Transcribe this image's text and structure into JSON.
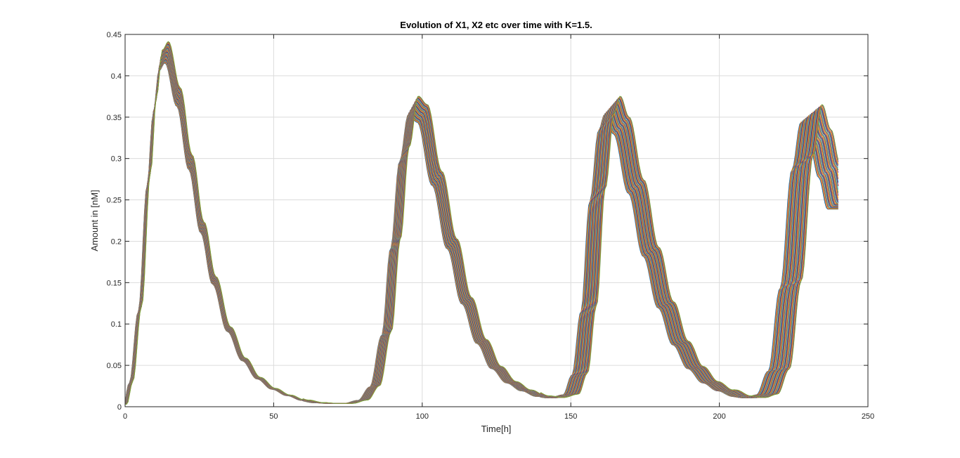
{
  "chart_data": {
    "type": "line",
    "title": "Evolution of X1, X2 etc over time with K=1.5.",
    "xlabel": "Time[h]",
    "ylabel": "Amount in [nM]",
    "xlim": [
      0,
      250
    ],
    "ylim": [
      0,
      0.45
    ],
    "xticks": [
      0,
      50,
      100,
      150,
      200,
      250
    ],
    "xtick_labels": [
      "0",
      "50",
      "100",
      "150",
      "200",
      "250"
    ],
    "yticks": [
      0,
      0.05,
      0.1,
      0.15,
      0.2,
      0.25,
      0.3,
      0.35,
      0.4,
      0.45
    ],
    "ytick_labels": [
      "0",
      "0.05",
      "0.1",
      "0.15",
      "0.2",
      "0.25",
      "0.3",
      "0.35",
      "0.4",
      "0.45"
    ],
    "grid": true,
    "legend": "none",
    "series_count": 40,
    "series_colors": [
      "#0072bd",
      "#d95319",
      "#edb120",
      "#7e2f8e",
      "#77ac30",
      "#4dbeee",
      "#a2142f"
    ],
    "reference_trajectory": {
      "x": [
        0,
        2,
        5,
        8,
        10,
        12,
        14,
        18,
        22,
        26,
        30,
        35,
        40,
        45,
        50,
        55,
        60,
        65,
        70,
        75,
        80,
        84,
        88,
        91,
        94,
        97,
        100,
        105,
        110,
        115,
        120,
        125,
        130,
        135,
        140,
        145,
        150,
        153,
        156,
        159,
        162,
        164,
        167,
        172,
        177,
        182,
        187,
        192,
        197,
        202,
        207,
        212,
        216,
        220,
        224,
        228,
        231,
        234,
        237,
        240
      ],
      "y": [
        0.003,
        0.03,
        0.12,
        0.28,
        0.37,
        0.425,
        0.435,
        0.38,
        0.3,
        0.22,
        0.155,
        0.095,
        0.058,
        0.035,
        0.022,
        0.014,
        0.008,
        0.005,
        0.004,
        0.004,
        0.008,
        0.025,
        0.09,
        0.2,
        0.31,
        0.37,
        0.36,
        0.28,
        0.2,
        0.13,
        0.08,
        0.048,
        0.03,
        0.02,
        0.013,
        0.011,
        0.015,
        0.04,
        0.12,
        0.26,
        0.35,
        0.37,
        0.345,
        0.27,
        0.19,
        0.125,
        0.078,
        0.048,
        0.03,
        0.02,
        0.013,
        0.011,
        0.015,
        0.045,
        0.15,
        0.3,
        0.36,
        0.33,
        0.29,
        0.25
      ]
    }
  }
}
